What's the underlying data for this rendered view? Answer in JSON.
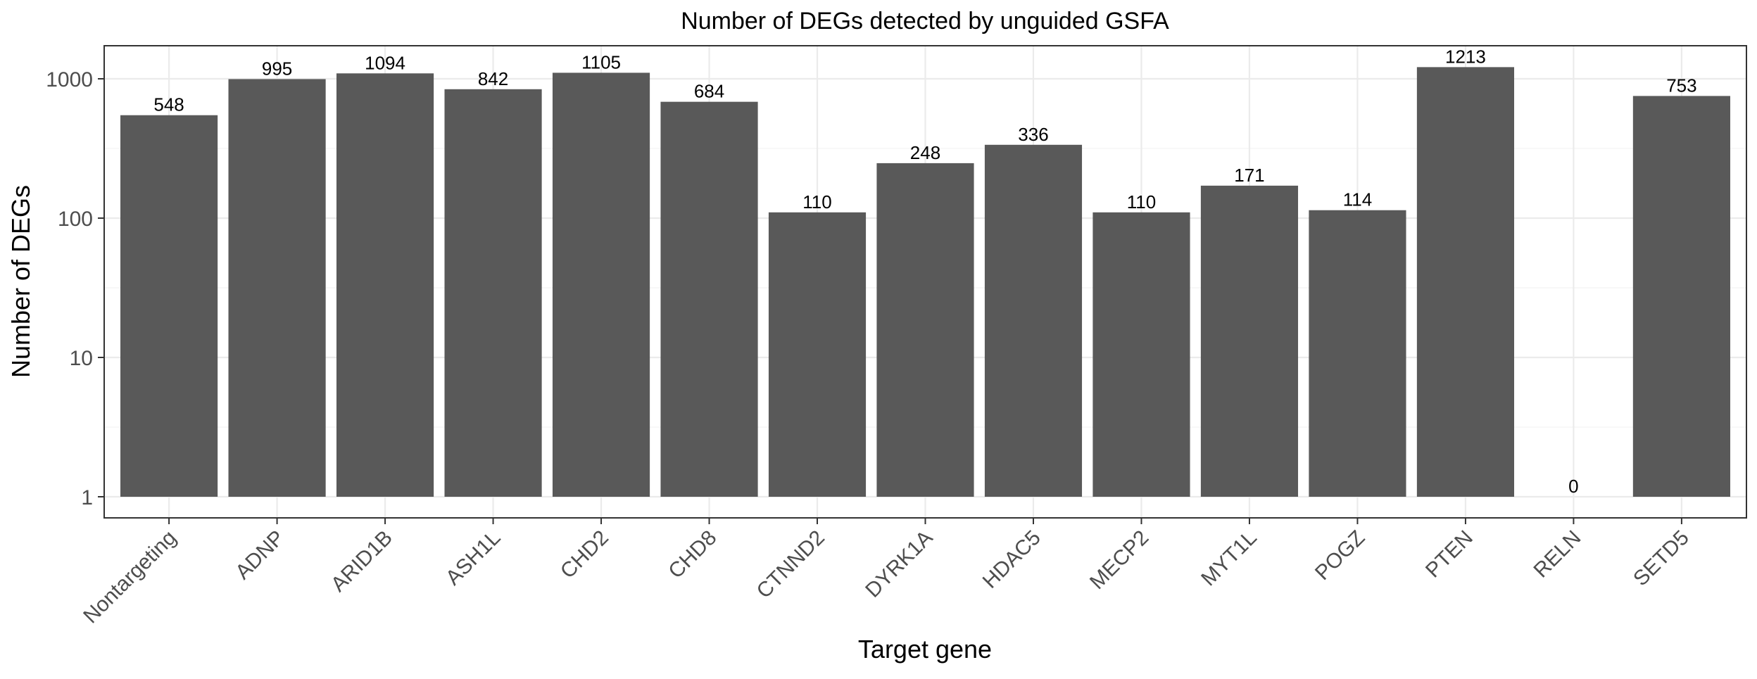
{
  "chart_data": {
    "type": "bar",
    "title": "Number of DEGs detected by unguided GSFA",
    "xlabel": "Target gene",
    "ylabel": "Number of DEGs",
    "y_scale": "log10",
    "ylim": [
      1,
      1700
    ],
    "y_ticks": [
      1,
      10,
      100,
      1000
    ],
    "y_tick_labels": [
      "1",
      "10",
      "100",
      "1000"
    ],
    "grid": true,
    "theme": "bw",
    "categories": [
      "Nontargeting",
      "ADNP",
      "ARID1B",
      "ASH1L",
      "CHD2",
      "CHD8",
      "CTNND2",
      "DYRK1A",
      "HDAC5",
      "MECP2",
      "MYT1L",
      "POGZ",
      "PTEN",
      "RELN",
      "SETD5"
    ],
    "values": [
      548,
      995,
      1094,
      842,
      1105,
      684,
      110,
      248,
      336,
      110,
      171,
      114,
      1213,
      0,
      753
    ],
    "data_labels": [
      "548",
      "995",
      "1094",
      "842",
      "1105",
      "684",
      "110",
      "248",
      "336",
      "110",
      "171",
      "114",
      "1213",
      "0",
      "753"
    ],
    "bar_color": "#595959",
    "panel_border_color": "#333333",
    "grid_color": "#ebebeb"
  }
}
